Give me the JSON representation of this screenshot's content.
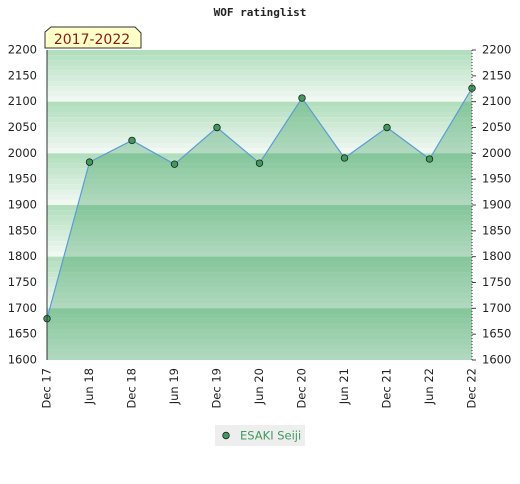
{
  "chart_data": {
    "type": "line",
    "title": "WOF ratinglist",
    "annotation": "2017-2022",
    "categories": [
      "Dec 17",
      "Jun 18",
      "Dec 18",
      "Jun 19",
      "Dec 19",
      "Jun 20",
      "Dec 20",
      "Jun 21",
      "Dec 21",
      "Jun 22",
      "Dec 22"
    ],
    "series": [
      {
        "name": "ESAKI Seiji",
        "color": "#5b9bd5",
        "marker_color": "#3f9a5c",
        "values": [
          1680,
          1983,
          2025,
          1979,
          2050,
          1981,
          2107,
          1991,
          2050,
          1989,
          2126
        ]
      }
    ],
    "ylim": [
      1600,
      2200
    ],
    "yticks": [
      1600,
      1650,
      1700,
      1750,
      1800,
      1850,
      1900,
      1950,
      2000,
      2050,
      2100,
      2150,
      2200
    ],
    "legend": "bottom"
  }
}
